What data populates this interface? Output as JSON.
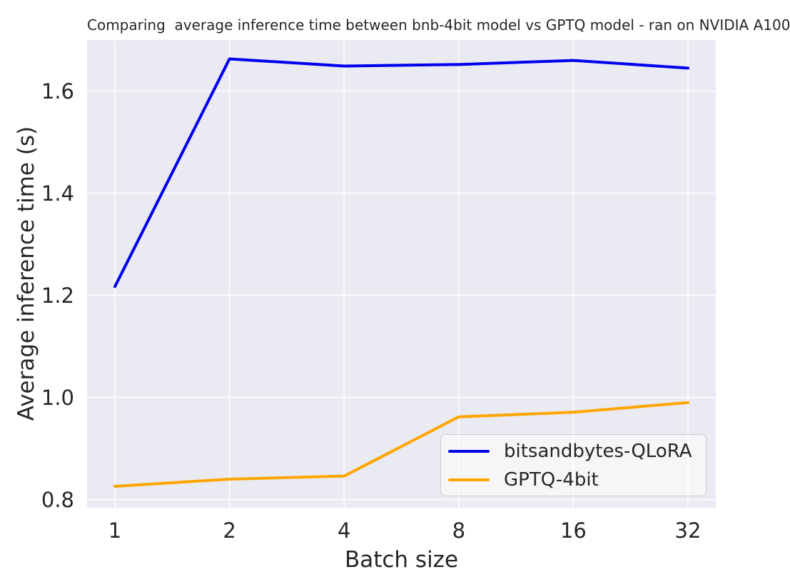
{
  "chart_data": {
    "type": "line",
    "title": "Comparing  average inference time between bnb-4bit model vs GPTQ model - ran on NVIDIA A100",
    "xlabel": "Batch size",
    "ylabel": "Average inference time (s)",
    "x_scale": "log2-equal-spacing",
    "categories": [
      "1",
      "2",
      "4",
      "8",
      "16",
      "32"
    ],
    "series": [
      {
        "name": "bitsandbytes-QLoRA",
        "color": "#0000ee",
        "values": [
          1.217,
          1.663,
          1.649,
          1.652,
          1.66,
          1.645
        ]
      },
      {
        "name": "GPTQ-4bit",
        "color": "#ffa500",
        "values": [
          0.826,
          0.84,
          0.846,
          0.962,
          0.971,
          0.99
        ]
      }
    ],
    "y_ticks": [
      0.8,
      1.0,
      1.2,
      1.4,
      1.6
    ],
    "y_tick_labels": [
      "0.8",
      "1.0",
      "1.2",
      "1.4",
      "1.6"
    ],
    "ylim": [
      0.784,
      1.7
    ],
    "grid": true,
    "grid_color": "#ffffff",
    "plot_bg": "#eaeaf2",
    "line_width": 4,
    "legend_position": "lower right"
  }
}
